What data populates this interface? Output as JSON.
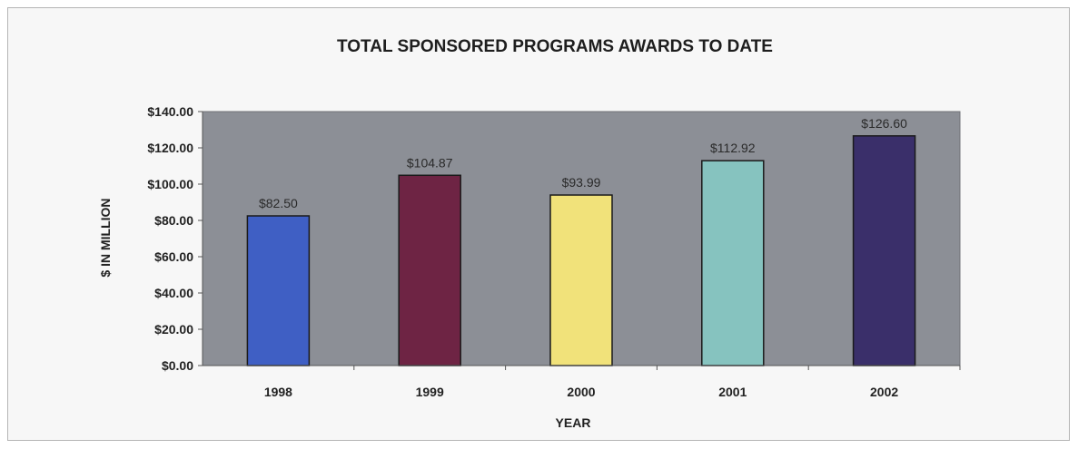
{
  "chart_data": {
    "type": "bar",
    "title": "TOTAL SPONSORED PROGRAMS AWARDS TO DATE",
    "xlabel": "YEAR",
    "ylabel": "$ IN MILLION",
    "categories": [
      "1998",
      "1999",
      "2000",
      "2001",
      "2002"
    ],
    "values": [
      82.5,
      104.87,
      93.99,
      112.92,
      126.6
    ],
    "data_labels": [
      "$82.50",
      "$104.87",
      "$93.99",
      "$112.92",
      "$126.60"
    ],
    "bar_colors": [
      "#3f5fc4",
      "#6e2444",
      "#f1e27a",
      "#86c3bf",
      "#3a2f6a"
    ],
    "plot_background": "#8c8f96",
    "ylim": [
      0,
      140
    ],
    "yticks": [
      0,
      20,
      40,
      60,
      80,
      100,
      120,
      140
    ],
    "ytick_labels": [
      "$0.00",
      "$20.00",
      "$40.00",
      "$60.00",
      "$80.00",
      "$100.00",
      "$120.00",
      "$140.00"
    ],
    "grid": false,
    "legend": "none"
  }
}
